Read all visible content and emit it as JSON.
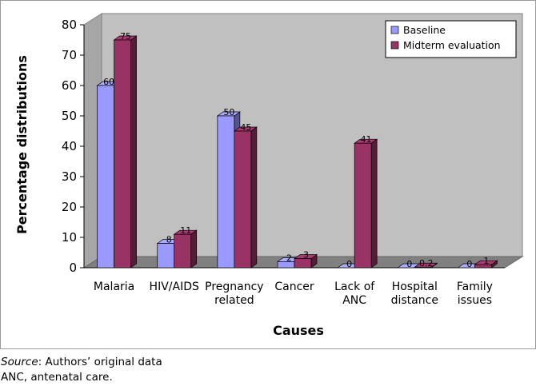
{
  "chart_data": {
    "type": "bar",
    "title": "",
    "xlabel": "Causes",
    "ylabel": "Percentage distributions",
    "ylim": [
      0,
      80
    ],
    "yticks": [
      0,
      10,
      20,
      30,
      40,
      50,
      60,
      70,
      80
    ],
    "grid": false,
    "legend_position": "top-right",
    "categories": [
      [
        "Malaria"
      ],
      [
        "HIV/AIDS"
      ],
      [
        "Pregnancy",
        "related"
      ],
      [
        "Cancer"
      ],
      [
        "Lack of",
        "ANC"
      ],
      [
        "Hospital",
        "distance"
      ],
      [
        "Family",
        "issues"
      ]
    ],
    "series": [
      {
        "name": "Baseline",
        "color": "#9999ff",
        "values": [
          60,
          8,
          50,
          2,
          0,
          0,
          0
        ],
        "labels": [
          "60",
          "8",
          "50",
          "2",
          "0",
          "0",
          "0"
        ]
      },
      {
        "name": "Midterm evaluation",
        "color": "#993366",
        "values": [
          75,
          11,
          45,
          3,
          41,
          0.2,
          1
        ],
        "labels": [
          "75",
          "11",
          "45",
          "3",
          "41",
          "0.2",
          "1"
        ]
      }
    ]
  },
  "caption": {
    "source_label": "Source",
    "source_text": ": Authors’ original data",
    "note": "ANC, antenatal care."
  }
}
